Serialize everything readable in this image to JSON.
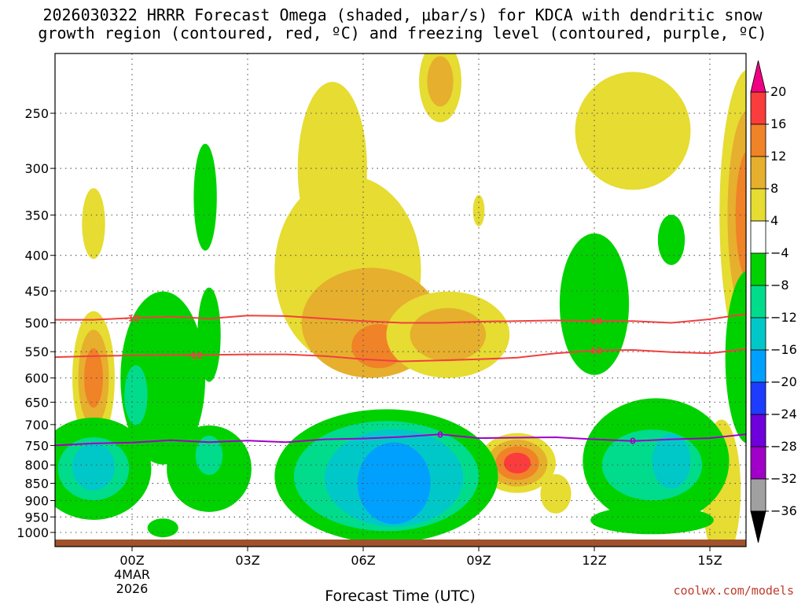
{
  "header": {
    "title_line1": "2026030322 HRRR Forecast Omega (shaded, μbar/s) for KDCA with dendritic snow",
    "title_line2": "growth region (contoured, red, ºC) and freezing level (contoured, purple, ºC)"
  },
  "footer": {
    "credit": "coolwx.com/models"
  },
  "chart_data": {
    "type": "heatmap",
    "title": "2026030322 HRRR Forecast Omega (shaded, μbar/s) for KDCA with dendritic snow growth region (contoured, red, ºC) and freezing level (contoured, purple, ºC)",
    "xlabel": "Forecast Time (UTC)",
    "ylabel": "",
    "x_range_hours": [
      -2,
      16
    ],
    "y_range_hpa": [
      1025,
      200
    ],
    "y_axis": "pressure (hPa), log scale",
    "x_ticks": [
      {
        "hour": 0,
        "label": "00Z",
        "sublabel1": "4MAR",
        "sublabel2": "2026"
      },
      {
        "hour": 3,
        "label": "03Z"
      },
      {
        "hour": 6,
        "label": "06Z"
      },
      {
        "hour": 9,
        "label": "09Z"
      },
      {
        "hour": 12,
        "label": "12Z"
      },
      {
        "hour": 15,
        "label": "15Z"
      }
    ],
    "y_ticks": [
      250,
      300,
      350,
      400,
      450,
      500,
      550,
      600,
      650,
      700,
      750,
      800,
      850,
      900,
      950,
      1000
    ],
    "grid": true,
    "colorbar": {
      "levels": [
        -36,
        -32,
        -28,
        -24,
        -20,
        -16,
        -12,
        -8,
        -4,
        4,
        8,
        12,
        16,
        20
      ],
      "label_values": [
        "20",
        "16",
        "12",
        "8",
        "4",
        "−4",
        "−8",
        "−12",
        "−16",
        "−20",
        "−24",
        "−28",
        "−32",
        "−36"
      ],
      "bins": [
        {
          "from": -40,
          "to": -36,
          "color": "#000000"
        },
        {
          "from": -36,
          "to": -32,
          "color": "#a0a0a0"
        },
        {
          "from": -32,
          "to": -28,
          "color": "#a000c8"
        },
        {
          "from": -28,
          "to": -24,
          "color": "#6e00dc"
        },
        {
          "from": -24,
          "to": -20,
          "color": "#1e3cff"
        },
        {
          "from": -20,
          "to": -16,
          "color": "#00a0ff"
        },
        {
          "from": -16,
          "to": -12,
          "color": "#00c8c8"
        },
        {
          "from": -12,
          "to": -8,
          "color": "#00dc8c"
        },
        {
          "from": -8,
          "to": -4,
          "color": "#00d200"
        },
        {
          "from": -4,
          "to": 4,
          "color": "#ffffff"
        },
        {
          "from": 4,
          "to": 8,
          "color": "#e6dc32"
        },
        {
          "from": 8,
          "to": 12,
          "color": "#e6af2d"
        },
        {
          "from": 12,
          "to": 16,
          "color": "#f08228"
        },
        {
          "from": 16,
          "to": 20,
          "color": "#fa3c3c"
        },
        {
          "from": 20,
          "to": 24,
          "color": "#f00082"
        }
      ]
    },
    "omega_features": [
      {
        "name": "upward-max-cell-0600-0800",
        "center_hour": 6.8,
        "center_hpa": 830,
        "min_value": -20,
        "description_value": "-16 to -20"
      },
      {
        "name": "upward-cell-1400",
        "center_hour": 14.0,
        "center_hpa": 790,
        "min_value": -16
      },
      {
        "name": "upward-cell-pre-00z",
        "center_hour": -1.0,
        "center_hpa": 800,
        "min_value": -12
      },
      {
        "name": "downward-max-cell-1000",
        "center_hour": 10.0,
        "center_hpa": 800,
        "max_value": 20
      },
      {
        "name": "downward-cell-0600-upper",
        "center_hour": 6.2,
        "center_hpa": 530,
        "max_value": 12
      },
      {
        "name": "downward-cell-0800-top",
        "center_hour": 8.0,
        "center_hpa": 225,
        "max_value": 8
      },
      {
        "name": "downward-cell-1600",
        "center_hour": 16.0,
        "center_hpa": 350,
        "max_value": 12
      },
      {
        "name": "downward-cell-pre-00z",
        "center_hour": -1.0,
        "center_hpa": 600,
        "max_value": 12
      }
    ],
    "contours": [
      {
        "name": "dendritic -18C",
        "color": "#f04040",
        "label": "-18",
        "points": [
          [
            -2,
            495
          ],
          [
            -1,
            495
          ],
          [
            0,
            492
          ],
          [
            1,
            490
          ],
          [
            2,
            493
          ],
          [
            3,
            488
          ],
          [
            4,
            489
          ],
          [
            5,
            493
          ],
          [
            6,
            497
          ],
          [
            7,
            500
          ],
          [
            8,
            500
          ],
          [
            9,
            498
          ],
          [
            10,
            497
          ],
          [
            11,
            496
          ],
          [
            12,
            497
          ],
          [
            13,
            497
          ],
          [
            14,
            500
          ],
          [
            15,
            494
          ],
          [
            16,
            485
          ]
        ]
      },
      {
        "name": "dendritic -12C",
        "color": "#f04040",
        "label": "-12",
        "points": [
          [
            -2,
            560
          ],
          [
            -1,
            558
          ],
          [
            0,
            557
          ],
          [
            1,
            556
          ],
          [
            2,
            556
          ],
          [
            3,
            555
          ],
          [
            4,
            555
          ],
          [
            5,
            558
          ],
          [
            6,
            564
          ],
          [
            7,
            568
          ],
          [
            8,
            566
          ],
          [
            9,
            564
          ],
          [
            10,
            561
          ],
          [
            11,
            553
          ],
          [
            12,
            548
          ],
          [
            13,
            547
          ],
          [
            14,
            551
          ],
          [
            15,
            553
          ],
          [
            16,
            545
          ]
        ]
      },
      {
        "name": "freezing level 0C",
        "color": "#a000c8",
        "label": "0",
        "points": [
          [
            -2,
            750
          ],
          [
            -1,
            745
          ],
          [
            0,
            743
          ],
          [
            1,
            737
          ],
          [
            2,
            742
          ],
          [
            3,
            738
          ],
          [
            4,
            742
          ],
          [
            5,
            735
          ],
          [
            6,
            733
          ],
          [
            7,
            729
          ],
          [
            8,
            723
          ],
          [
            9,
            732
          ],
          [
            10,
            731
          ],
          [
            11,
            730
          ],
          [
            12,
            735
          ],
          [
            13,
            739
          ],
          [
            14,
            735
          ],
          [
            15,
            732
          ],
          [
            16,
            722
          ]
        ]
      }
    ]
  }
}
